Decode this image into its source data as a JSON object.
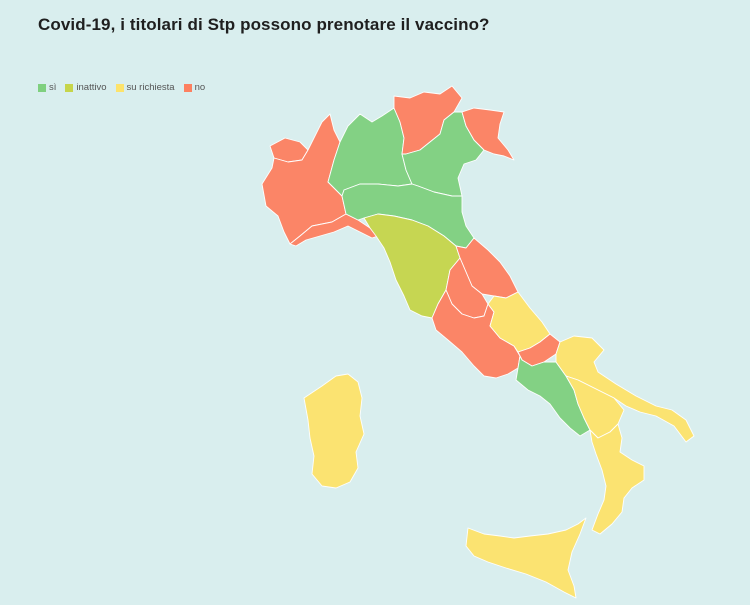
{
  "title": "Covid-19, i titolari di Stp possono prenotare il vaccino?",
  "colors": {
    "si": "#7fd07f",
    "inattivo": "#c6d54a",
    "su_richiesta": "#fde36b",
    "no": "#fd8060"
  },
  "legend": [
    {
      "key": "si",
      "label": "sì"
    },
    {
      "key": "inattivo",
      "label": "inattivo"
    },
    {
      "key": "su_richiesta",
      "label": "su richiesta"
    },
    {
      "key": "no",
      "label": "no"
    }
  ],
  "regions": {
    "valle_d_aosta": "no",
    "piemonte": "no",
    "liguria": "no",
    "lombardia": "si",
    "trentino_alto_adige": "no",
    "veneto": "si",
    "friuli_venezia_giulia": "no",
    "emilia_romagna": "si",
    "toscana": "inattivo",
    "umbria": "no",
    "marche": "no",
    "lazio": "no",
    "abruzzo": "su_richiesta",
    "molise": "no",
    "campania": "si",
    "puglia": "su_richiesta",
    "basilicata": "su_richiesta",
    "calabria": "su_richiesta",
    "sicilia": "su_richiesta",
    "sardegna": "su_richiesta"
  }
}
